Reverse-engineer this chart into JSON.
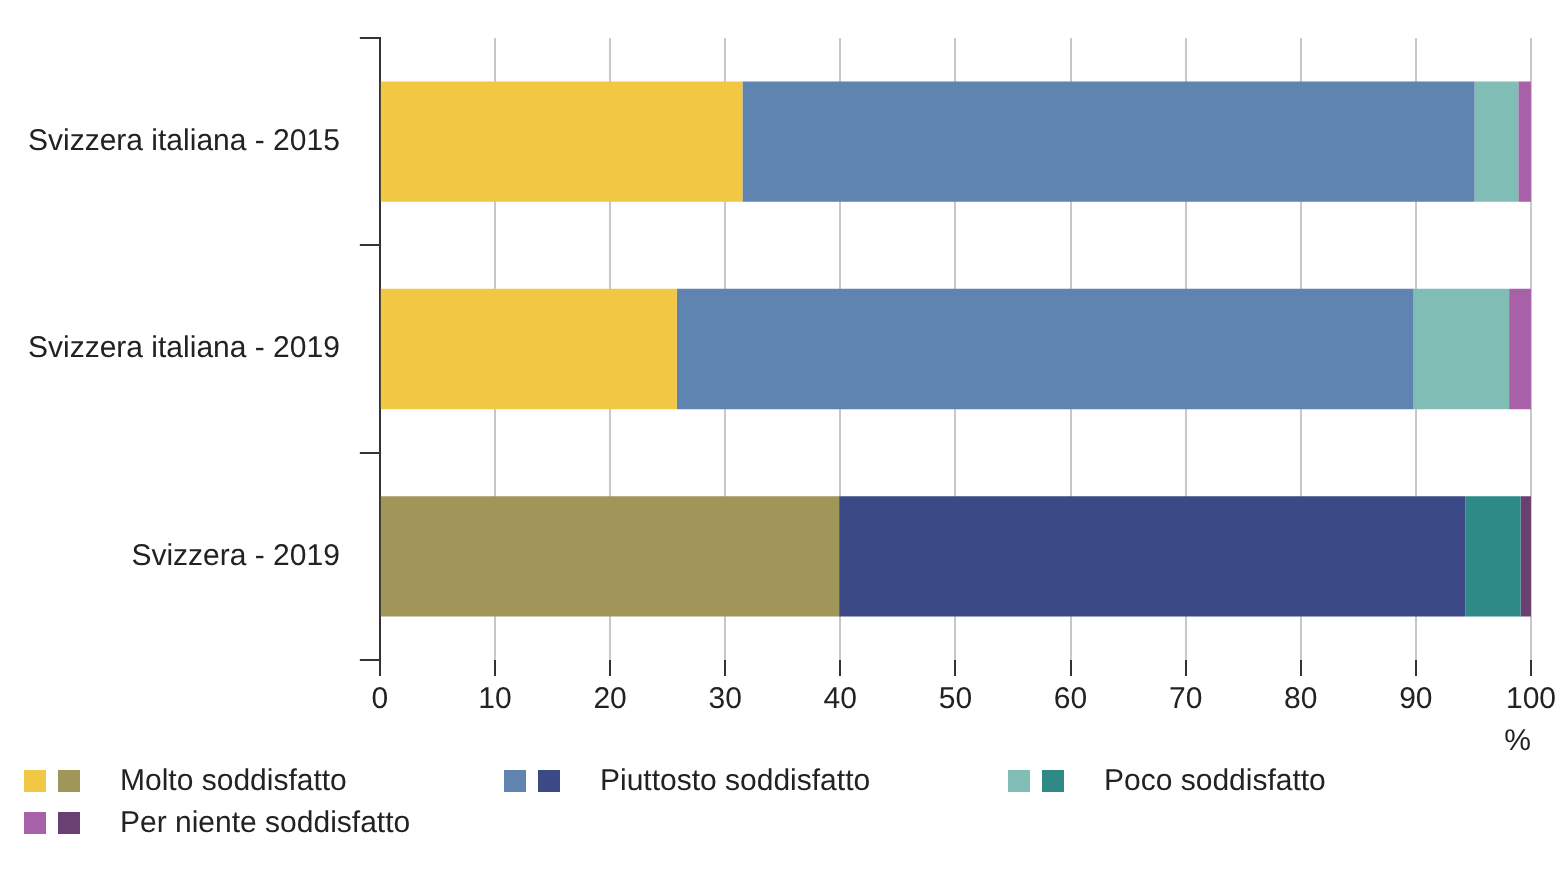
{
  "chart_data": {
    "type": "bar",
    "orientation": "horizontal",
    "stacked": true,
    "categories": [
      "Svizzera italiana - 2015",
      "Svizzera italiana - 2019",
      "Svizzera - 2019"
    ],
    "series": [
      {
        "name": "Molto soddisfatto",
        "colors": [
          "#f2c744",
          "#f2c744",
          "#a09659"
        ],
        "values": [
          31.5,
          25.8,
          39.9
        ]
      },
      {
        "name": "Piuttosto soddisfatto",
        "colors": [
          "#6084b0",
          "#6084b0",
          "#3b4a86"
        ],
        "values": [
          63.6,
          64.0,
          54.4
        ]
      },
      {
        "name": "Poco soddisfatto",
        "colors": [
          "#7fbdb5",
          "#7fbdb5",
          "#2d8a87"
        ],
        "values": [
          3.8,
          8.3,
          4.8
        ]
      },
      {
        "name": "Per niente soddisfatto",
        "colors": [
          "#a861a8",
          "#a861a8",
          "#6a3f71"
        ],
        "values": [
          1.1,
          1.9,
          0.9
        ]
      }
    ],
    "xlabel": "%",
    "xlim": [
      0,
      100
    ],
    "xticks": [
      0,
      10,
      20,
      30,
      40,
      50,
      60,
      70,
      80,
      90,
      100
    ],
    "grid": "x",
    "legend": "bottom"
  }
}
